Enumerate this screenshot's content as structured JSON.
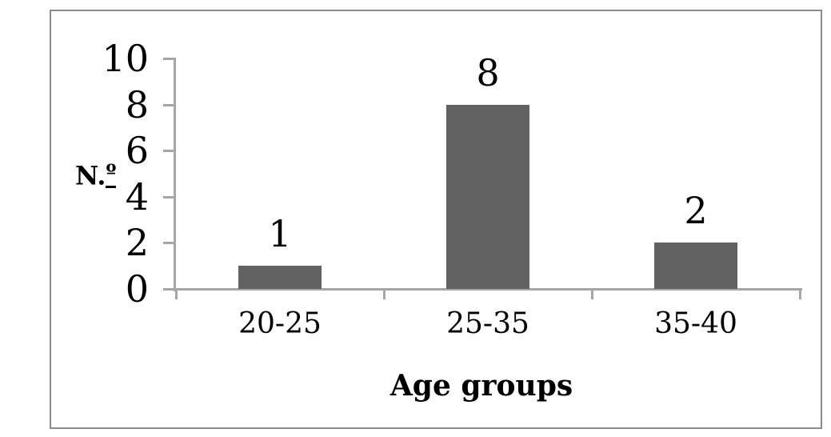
{
  "chart_data": {
    "type": "bar",
    "categories": [
      "20-25",
      "25-35",
      "35-40"
    ],
    "values": [
      1,
      8,
      2
    ],
    "bar_value_labels": [
      "1",
      "8",
      "2"
    ],
    "xlabel": "Age groups",
    "ylabel": "N.º",
    "ylabel_prefix": "N.",
    "ylabel_ordinal": "º",
    "ylim": [
      0,
      10
    ],
    "yticks": [
      0,
      2,
      4,
      6,
      8,
      10
    ],
    "grid": false,
    "legend": "none",
    "bar_color": "#626262",
    "axis_color": "#a6a6a6",
    "border_color": "#8c8c8c",
    "text_color": "#000000",
    "background": "#ffffff"
  }
}
